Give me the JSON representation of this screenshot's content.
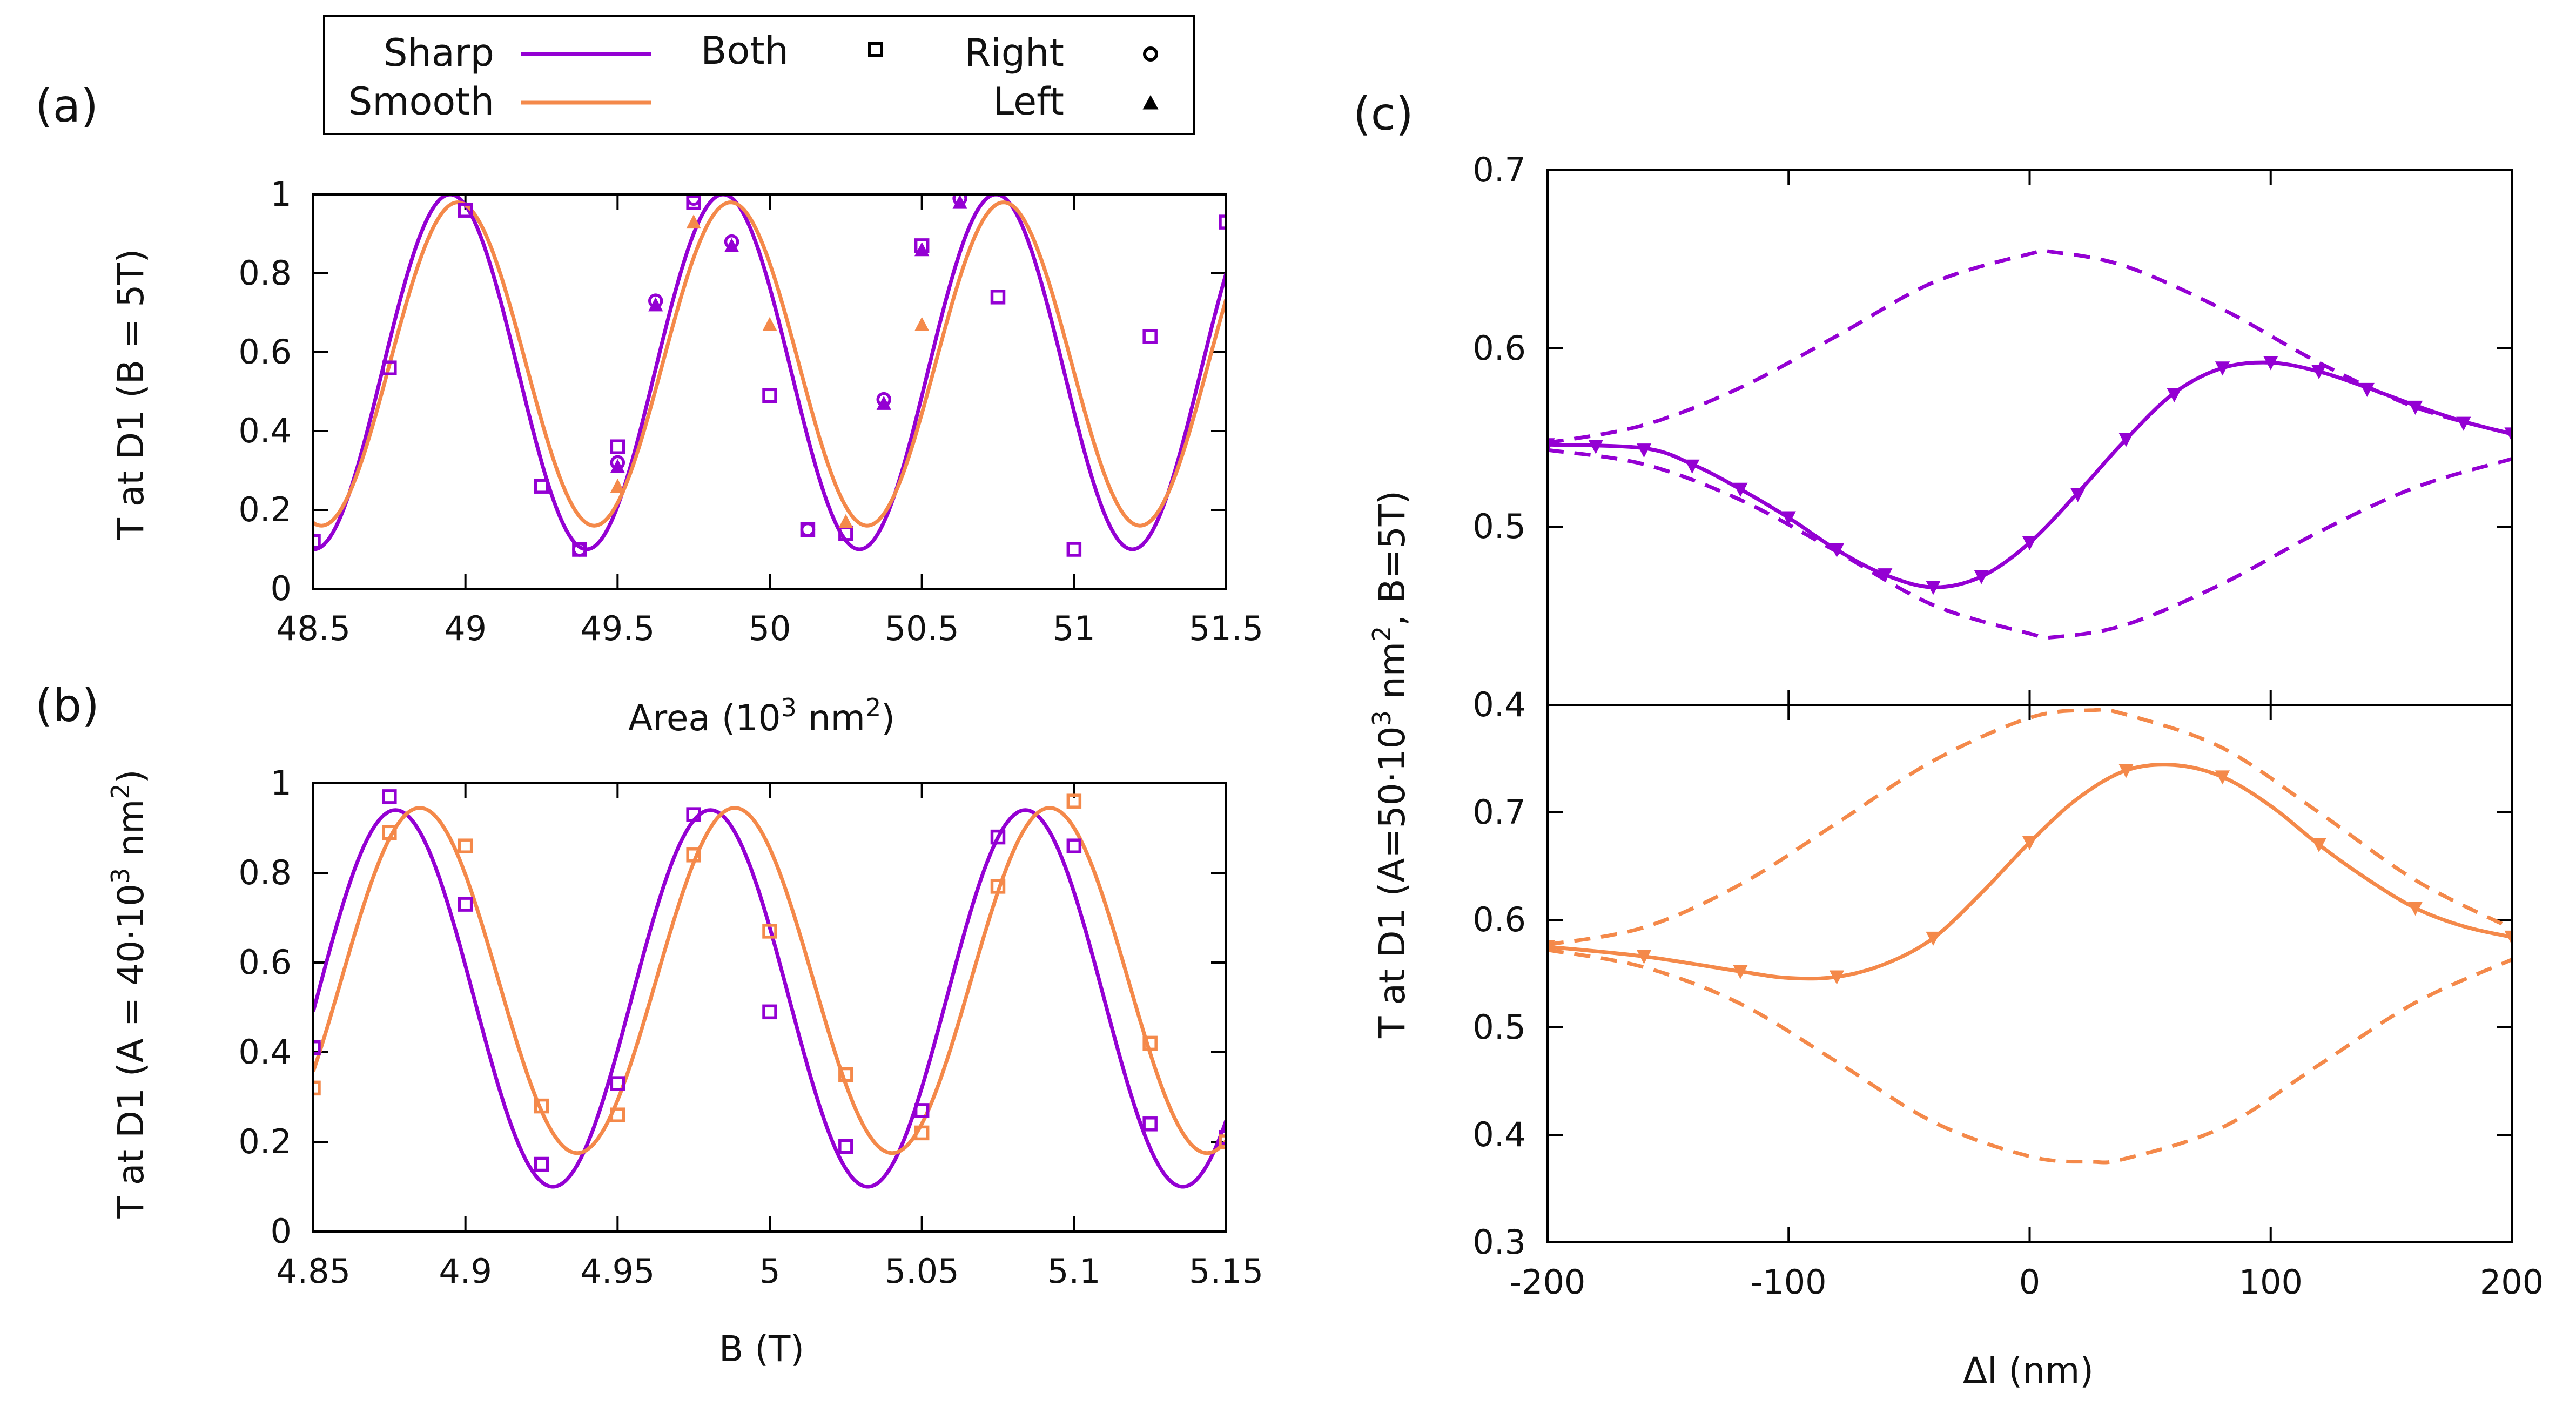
{
  "colors": {
    "sharp": "#9400d3",
    "smooth": "#f4894a",
    "axis": "#000000"
  },
  "legend": {
    "sharp": "Sharp",
    "smooth": "Smooth",
    "both": "Both",
    "right": "Right",
    "left": "Left"
  },
  "panels": {
    "a": "(a)",
    "b": "(b)",
    "c": "(c)"
  },
  "chart_data": [
    {
      "id": "a",
      "type": "line",
      "xlabel_main": "Area (10",
      "xlabel_sup": "3",
      "xlabel_mid": " nm",
      "xlabel_sup2": "2",
      "xlabel_end": ")",
      "ylabel": "T at D1 (B = 5T)",
      "xlim": [
        48.5,
        51.5
      ],
      "ylim": [
        0,
        1
      ],
      "xticks": [
        48.5,
        49,
        49.5,
        50,
        50.5,
        51,
        51.5
      ],
      "xtick_labels": [
        "48.5",
        "49",
        "49.5",
        "50",
        "50.5",
        "51",
        "51.5"
      ],
      "yticks": [
        0,
        0.2,
        0.4,
        0.6,
        0.8,
        1
      ],
      "ytick_labels": [
        "0",
        "0.2",
        "0.4",
        "0.6",
        "0.8",
        "1"
      ],
      "curves": [
        {
          "name": "Sharp",
          "color": "sharp",
          "model": {
            "offset": 0.55,
            "amp": 0.45,
            "period": 0.8968,
            "peak": 48.95
          }
        },
        {
          "name": "Smooth",
          "color": "smooth",
          "model": {
            "offset": 0.57,
            "amp": 0.41,
            "period": 0.8968,
            "peak": 48.975
          }
        }
      ],
      "points": [
        {
          "series": "Sharp",
          "marker": "square",
          "x": [
            48.5,
            48.75,
            49.0,
            49.25,
            49.375,
            49.5,
            49.75,
            50.0,
            50.125,
            50.25,
            50.5,
            50.75,
            51.0,
            51.25,
            51.5
          ],
          "y": [
            0.12,
            0.56,
            0.96,
            0.26,
            0.1,
            0.36,
            0.98,
            0.49,
            0.15,
            0.14,
            0.87,
            0.74,
            0.1,
            0.64,
            0.93
          ]
        },
        {
          "series": "Sharp",
          "marker": "circle",
          "x": [
            49.375,
            49.5,
            49.625,
            49.75,
            49.875,
            50.125,
            50.375,
            50.625
          ],
          "y": [
            0.1,
            0.32,
            0.73,
            0.99,
            0.88,
            0.15,
            0.48,
            0.99
          ]
        },
        {
          "series": "Sharp",
          "marker": "triangle",
          "x": [
            49.5,
            49.625,
            49.875,
            50.375,
            50.5,
            50.625
          ],
          "y": [
            0.31,
            0.72,
            0.87,
            0.47,
            0.86,
            0.98
          ]
        },
        {
          "series": "Smooth",
          "marker": "triangle",
          "x": [
            49.5,
            49.75,
            50.0,
            50.25,
            50.5
          ],
          "y": [
            0.26,
            0.93,
            0.67,
            0.17,
            0.67
          ]
        }
      ]
    },
    {
      "id": "b",
      "type": "line",
      "xlabel": "B (T)",
      "ylabel_main": "T at D1 (A = 40·10",
      "ylabel_sup": "3",
      "ylabel_mid": " nm",
      "ylabel_sup2": "2",
      "ylabel_end": ")",
      "xlim": [
        4.85,
        5.15
      ],
      "ylim": [
        0,
        1
      ],
      "xticks": [
        4.85,
        4.9,
        4.95,
        5.0,
        5.05,
        5.1,
        5.15
      ],
      "xtick_labels": [
        "4.85",
        "4.9",
        "4.95",
        "5",
        "5.05",
        "5.1",
        "5.15"
      ],
      "yticks": [
        0,
        0.2,
        0.4,
        0.6,
        0.8,
        1
      ],
      "ytick_labels": [
        "0",
        "0.2",
        "0.4",
        "0.6",
        "0.8",
        "1"
      ],
      "curves": [
        {
          "name": "Sharp",
          "color": "sharp",
          "model": {
            "offset": 0.52,
            "amp": 0.42,
            "period": 0.1035,
            "peak": 4.877
          }
        },
        {
          "name": "Smooth",
          "color": "smooth",
          "model": {
            "offset": 0.56,
            "amp": 0.385,
            "period": 0.1035,
            "peak": 4.885
          }
        }
      ],
      "points": [
        {
          "series": "Sharp",
          "marker": "square",
          "x": [
            4.85,
            4.875,
            4.9,
            4.925,
            4.95,
            4.975,
            5.0,
            5.025,
            5.05,
            5.075,
            5.1,
            5.125,
            5.15
          ],
          "y": [
            0.41,
            0.97,
            0.73,
            0.15,
            0.33,
            0.93,
            0.49,
            0.19,
            0.27,
            0.88,
            0.86,
            0.24,
            0.21
          ]
        },
        {
          "series": "Smooth",
          "marker": "square",
          "x": [
            4.85,
            4.875,
            4.9,
            4.925,
            4.95,
            4.975,
            5.0,
            5.025,
            5.05,
            5.075,
            5.1,
            5.125,
            5.15
          ],
          "y": [
            0.32,
            0.89,
            0.86,
            0.28,
            0.26,
            0.84,
            0.67,
            0.35,
            0.22,
            0.77,
            0.96,
            0.42,
            0.2
          ]
        }
      ]
    },
    {
      "id": "c-top",
      "type": "line",
      "ylabel": "",
      "xlim": [
        -200,
        200
      ],
      "ylim": [
        0.4,
        0.7
      ],
      "yticks": [
        0.4,
        0.5,
        0.6,
        0.7
      ],
      "ytick_labels": [
        "0.4",
        "0.5",
        "0.6",
        "0.7"
      ],
      "xticks": [
        -200,
        -100,
        0,
        100,
        200
      ],
      "curves": [
        {
          "name": "Sharp",
          "color": "sharp",
          "style": "solid",
          "x": [
            -200,
            -160,
            -140,
            -120,
            -100,
            -80,
            -60,
            -40,
            -20,
            0,
            20,
            40,
            60,
            80,
            100,
            120,
            140,
            160,
            180,
            200
          ],
          "y": [
            0.546,
            0.544,
            0.535,
            0.521,
            0.505,
            0.487,
            0.473,
            0.466,
            0.472,
            0.491,
            0.519,
            0.549,
            0.575,
            0.589,
            0.592,
            0.587,
            0.578,
            0.568,
            0.559,
            0.552
          ]
        },
        {
          "name": "Sharp bound upper",
          "color": "sharp",
          "style": "dashed",
          "x": [
            -200,
            -160,
            -120,
            -80,
            -40,
            0,
            10,
            40,
            80,
            120,
            160,
            200
          ],
          "y": [
            0.547,
            0.557,
            0.578,
            0.607,
            0.637,
            0.653,
            0.654,
            0.646,
            0.622,
            0.592,
            0.567,
            0.552
          ]
        },
        {
          "name": "Sharp bound lower",
          "color": "sharp",
          "style": "dashed",
          "x": [
            -200,
            -160,
            -120,
            -80,
            -40,
            0,
            10,
            40,
            80,
            120,
            160,
            200
          ],
          "y": [
            0.543,
            0.535,
            0.515,
            0.486,
            0.456,
            0.44,
            0.438,
            0.445,
            0.468,
            0.497,
            0.522,
            0.538
          ]
        }
      ],
      "points": [
        {
          "series": "Sharp",
          "marker": "triangle-down",
          "x": [
            -200,
            -180,
            -160,
            -140,
            -120,
            -100,
            -80,
            -60,
            -40,
            -20,
            0,
            20,
            40,
            60,
            80,
            100,
            120,
            140,
            160,
            180,
            200
          ],
          "y": [
            0.546,
            0.545,
            0.543,
            0.534,
            0.521,
            0.505,
            0.487,
            0.473,
            0.466,
            0.472,
            0.491,
            0.518,
            0.549,
            0.574,
            0.589,
            0.592,
            0.587,
            0.577,
            0.567,
            0.558,
            0.552
          ]
        }
      ]
    },
    {
      "id": "c-bottom",
      "type": "line",
      "xlabel": "Δl (nm)",
      "ylabel_main": "T at D1 (A=50·10",
      "ylabel_sup": "3",
      "ylabel_mid": " nm",
      "ylabel_sup2": "2",
      "ylabel_end": ", B=5T)",
      "xlim": [
        -200,
        200
      ],
      "ylim": [
        0.3,
        0.8
      ],
      "xticks": [
        -200,
        -100,
        0,
        100,
        200
      ],
      "xtick_labels": [
        "-200",
        "-100",
        "0",
        "100",
        "200"
      ],
      "yticks": [
        0.3,
        0.4,
        0.5,
        0.6,
        0.7
      ],
      "ytick_labels": [
        "0.3",
        "0.4",
        "0.5",
        "0.6",
        "0.7"
      ],
      "curves": [
        {
          "name": "Smooth",
          "color": "smooth",
          "style": "solid",
          "x": [
            -200,
            -160,
            -120,
            -100,
            -80,
            -60,
            -40,
            -20,
            0,
            20,
            40,
            60,
            80,
            100,
            120,
            140,
            160,
            180,
            200
          ],
          "y": [
            0.575,
            0.566,
            0.552,
            0.546,
            0.547,
            0.559,
            0.583,
            0.625,
            0.672,
            0.713,
            0.739,
            0.744,
            0.733,
            0.706,
            0.67,
            0.638,
            0.611,
            0.594,
            0.584
          ]
        },
        {
          "name": "Smooth bound upper",
          "color": "smooth",
          "style": "dashed",
          "x": [
            -200,
            -160,
            -120,
            -80,
            -40,
            0,
            25,
            40,
            80,
            120,
            160,
            200
          ],
          "y": [
            0.577,
            0.593,
            0.633,
            0.69,
            0.748,
            0.788,
            0.795,
            0.791,
            0.76,
            0.7,
            0.637,
            0.592
          ]
        },
        {
          "name": "Smooth bound lower",
          "color": "smooth",
          "style": "dashed",
          "x": [
            -200,
            -160,
            -120,
            -80,
            -40,
            0,
            25,
            40,
            80,
            120,
            160,
            200
          ],
          "y": [
            0.572,
            0.556,
            0.522,
            0.468,
            0.412,
            0.38,
            0.375,
            0.378,
            0.407,
            0.465,
            0.523,
            0.563
          ]
        }
      ],
      "points": [
        {
          "series": "Smooth",
          "marker": "triangle-down",
          "x": [
            -200,
            -160,
            -120,
            -80,
            -40,
            0,
            40,
            80,
            120,
            160,
            200
          ],
          "y": [
            0.575,
            0.566,
            0.552,
            0.547,
            0.583,
            0.672,
            0.739,
            0.733,
            0.67,
            0.611,
            0.584
          ]
        }
      ]
    }
  ]
}
